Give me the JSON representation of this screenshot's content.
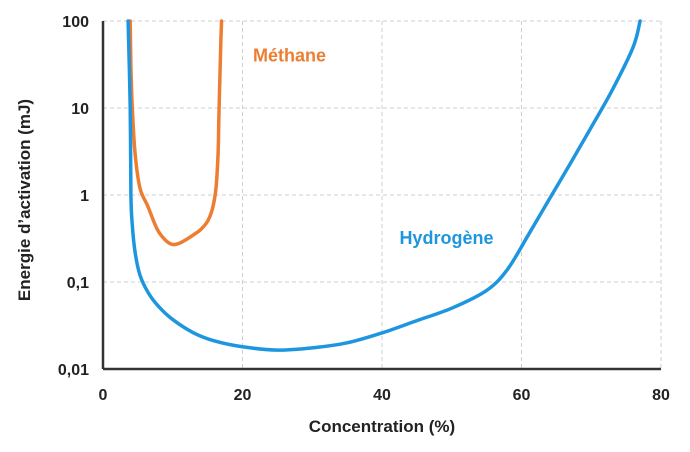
{
  "chart_data": {
    "type": "line",
    "title": "",
    "xlabel": "Concentration (%)",
    "ylabel": "Energie d’activation (mJ)",
    "xlim": [
      0,
      80
    ],
    "ylim": [
      0.01,
      100
    ],
    "yscale": "log",
    "grid": true,
    "xticks": [
      0,
      20,
      40,
      60,
      80
    ],
    "xtick_labels": [
      "0",
      "20",
      "40",
      "60",
      "80"
    ],
    "yticks": [
      0.01,
      0.1,
      1,
      10,
      100
    ],
    "ytick_labels": [
      "0,01",
      "0,1",
      "1",
      "10",
      "100"
    ],
    "series": [
      {
        "name": "Méthane",
        "color": "#ED7D31",
        "x": [
          3.9,
          4.0,
          4.2,
          4.6,
          5.3,
          6.4,
          7.8,
          9.0,
          10.0,
          11.0,
          12.0,
          13.0,
          14.0,
          15.0,
          15.7,
          16.2,
          16.5,
          16.6,
          16.7,
          16.8,
          16.9,
          17.0
        ],
        "y": [
          100,
          30,
          10,
          3.0,
          1.2,
          0.75,
          0.4,
          0.3,
          0.27,
          0.28,
          0.31,
          0.35,
          0.4,
          0.5,
          0.7,
          1.2,
          3.0,
          7.0,
          15,
          30,
          60,
          100
        ]
      },
      {
        "name": "Hydrogène",
        "color": "#1E96DF",
        "x": [
          3.6,
          3.9,
          4.0,
          4.2,
          4.6,
          5.3,
          6.5,
          8.0,
          10.0,
          13.0,
          16.0,
          20.0,
          25.0,
          30.0,
          35.0,
          40.0,
          45.0,
          50.0,
          55.0,
          58.0,
          61.0,
          64.0,
          67.0,
          70.0,
          73.0,
          76.0,
          77.0
        ],
        "y": [
          100,
          10,
          1.0,
          0.45,
          0.22,
          0.12,
          0.075,
          0.052,
          0.037,
          0.026,
          0.021,
          0.018,
          0.0165,
          0.0175,
          0.02,
          0.026,
          0.036,
          0.05,
          0.08,
          0.14,
          0.35,
          0.9,
          2.3,
          6.0,
          16,
          50,
          100
        ]
      }
    ],
    "labels": [
      {
        "text": "Méthane",
        "color": "#ED7D31",
        "x": 21.5,
        "y": 40
      },
      {
        "text": "Hydrogène",
        "color": "#1E96DF",
        "x": 42.5,
        "y": 0.32
      }
    ]
  }
}
